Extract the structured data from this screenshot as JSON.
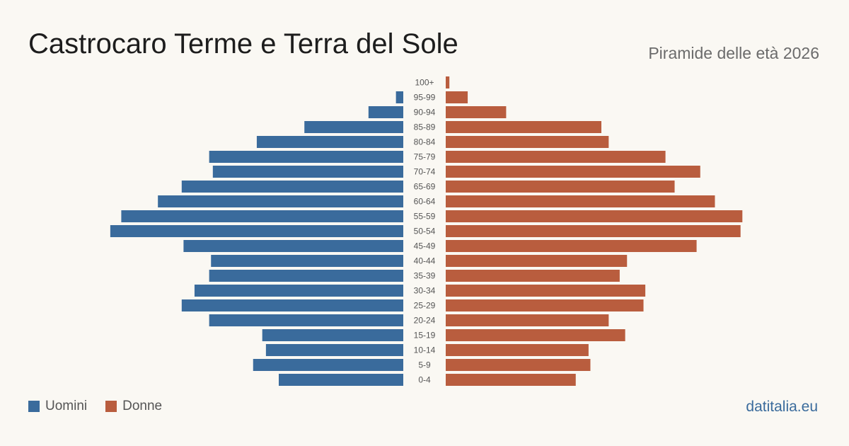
{
  "header": {
    "title": "Castrocaro Terme e Terra del Sole",
    "subtitle": "Piramide delle età 2026"
  },
  "legend": {
    "men_label": "Uomini",
    "women_label": "Donne"
  },
  "footer": {
    "source": "datitalia.eu"
  },
  "colors": {
    "men": "#3a6b9c",
    "women": "#b95d3e",
    "background": "#faf8f3",
    "age_label": "#555555"
  },
  "chart_data": {
    "type": "bar",
    "orientation": "horizontal-pyramid",
    "categories": [
      "100+",
      "95-99",
      "90-94",
      "85-89",
      "80-84",
      "75-79",
      "70-74",
      "65-69",
      "60-64",
      "55-59",
      "50-54",
      "45-49",
      "40-44",
      "35-39",
      "30-34",
      "25-29",
      "20-24",
      "15-19",
      "10-14",
      "5-9",
      "0-4"
    ],
    "series": [
      {
        "name": "Uomini",
        "values": [
          0,
          4,
          19,
          54,
          80,
          106,
          104,
          121,
          134,
          154,
          160,
          120,
          105,
          106,
          114,
          121,
          106,
          77,
          75,
          82,
          68
        ]
      },
      {
        "name": "Donne",
        "values": [
          2,
          12,
          33,
          85,
          89,
          120,
          139,
          125,
          147,
          162,
          161,
          137,
          99,
          95,
          109,
          108,
          89,
          98,
          78,
          79,
          71
        ]
      }
    ],
    "xlim": [
      0,
      170
    ],
    "grid": false,
    "legend_position": "bottom-left"
  }
}
